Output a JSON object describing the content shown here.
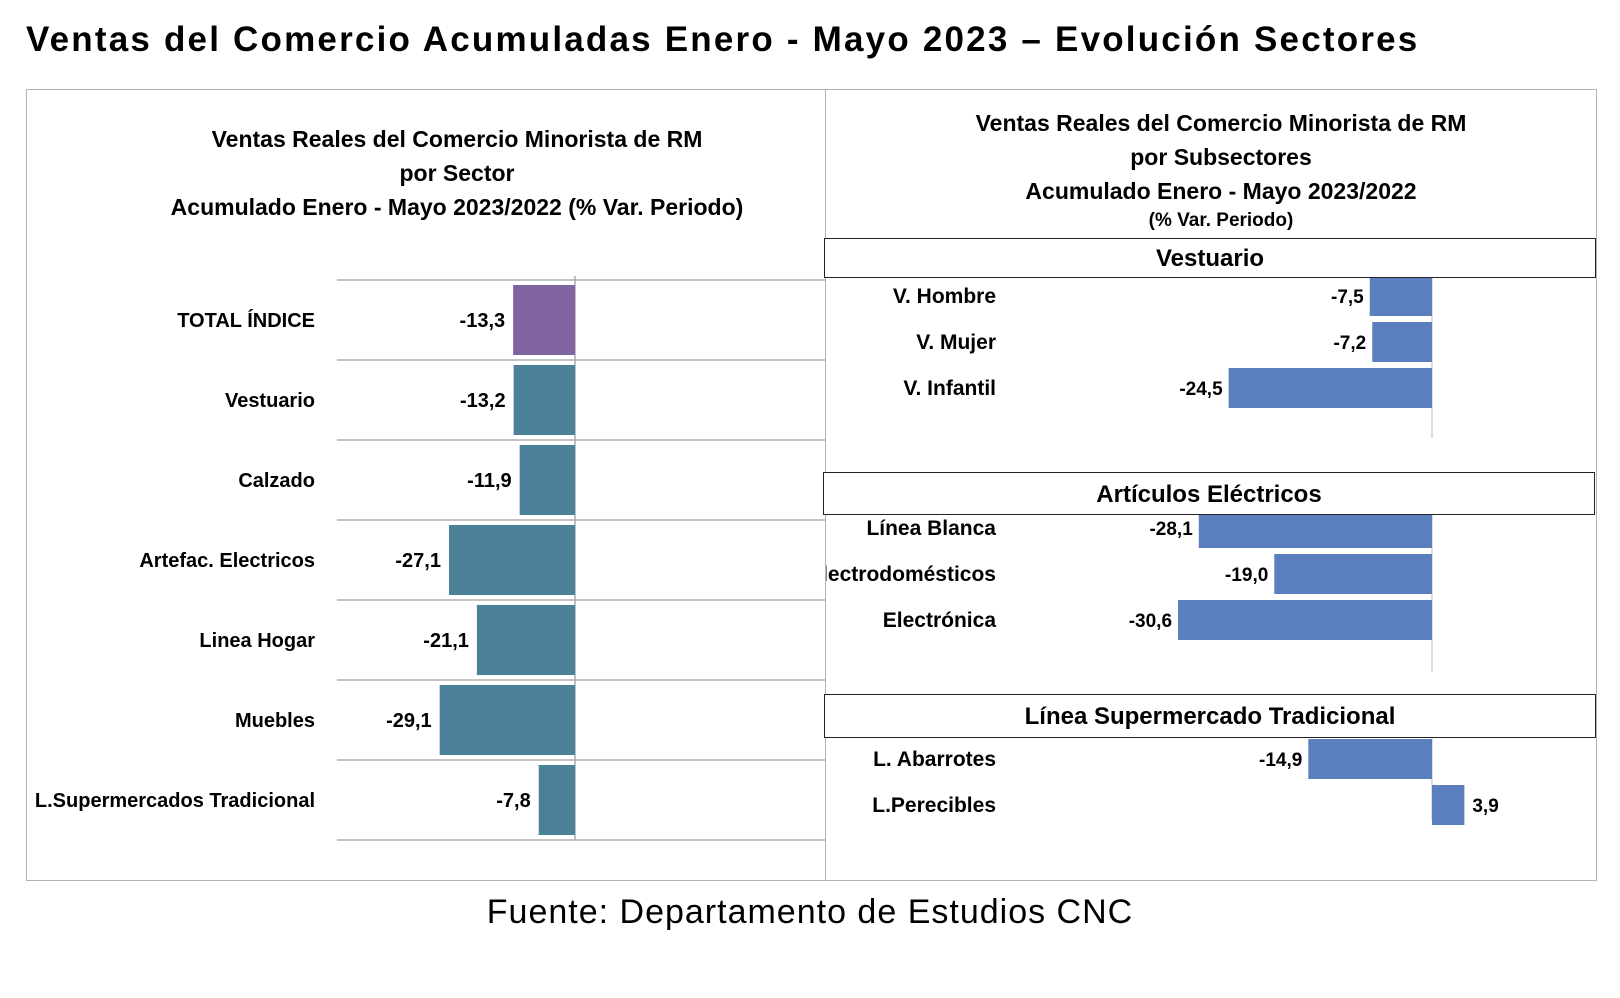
{
  "title": "Ventas del Comercio Acumuladas Enero - Mayo 2023 – Evolución Sectores",
  "source": "Fuente: Departamento de Estudios CNC",
  "left_chart": {
    "title_lines": [
      "Ventas Reales del Comercio Minorista de RM",
      "por Sector",
      "Acumulado Enero - Mayo 2023/2022 (% Var. Periodo)"
    ]
  },
  "right_chart": {
    "title_lines": [
      "Ventas Reales del Comercio Minorista de RM",
      "por Subsectores",
      "Acumulado Enero - Mayo 2023/2022"
    ],
    "subtitle": "(% Var. Periodo)",
    "sections": [
      "Vestuario",
      "Artículos Eléctricos",
      "Línea  Supermercado Tradicional"
    ]
  },
  "colors": {
    "total": "#8064a2",
    "sector": "#4a8199",
    "subsector": "#5b7fbd"
  },
  "chart_data": [
    {
      "type": "bar",
      "orientation": "horizontal",
      "categories": [
        "TOTAL ÍNDICE",
        "Vestuario",
        "Calzado",
        "Artefac. Electricos",
        "Linea Hogar",
        "Muebles",
        "L.Supermercados Tradicional"
      ],
      "values": [
        -13.3,
        -13.2,
        -11.9,
        -27.1,
        -21.1,
        -29.1,
        -7.8
      ],
      "labels": [
        "-13,3",
        "-13,2",
        "-11,9",
        "-27,1",
        "-21,1",
        "-29,1",
        "-7,8"
      ],
      "grid": true
    },
    {
      "type": "bar",
      "orientation": "horizontal",
      "groups": [
        {
          "name": "Vestuario",
          "categories": [
            "V. Hombre",
            "V. Mujer",
            "V. Infantil"
          ],
          "values": [
            -7.5,
            -7.2,
            -24.5
          ],
          "labels": [
            "-7,5",
            "-7,2",
            "-24,5"
          ]
        },
        {
          "name": "Artículos Eléctricos",
          "categories": [
            "Línea Blanca",
            "Electrodomésticos",
            "Electrónica"
          ],
          "values": [
            -28.1,
            -19.0,
            -30.6
          ],
          "labels": [
            "-28,1",
            "-19,0",
            "-30,6"
          ]
        },
        {
          "name": "Línea  Supermercado Tradicional",
          "categories": [
            "L. Abarrotes",
            "L.Perecibles"
          ],
          "values": [
            -14.9,
            3.9
          ],
          "labels": [
            "-14,9",
            "3,9"
          ]
        }
      ],
      "grid": false
    }
  ]
}
